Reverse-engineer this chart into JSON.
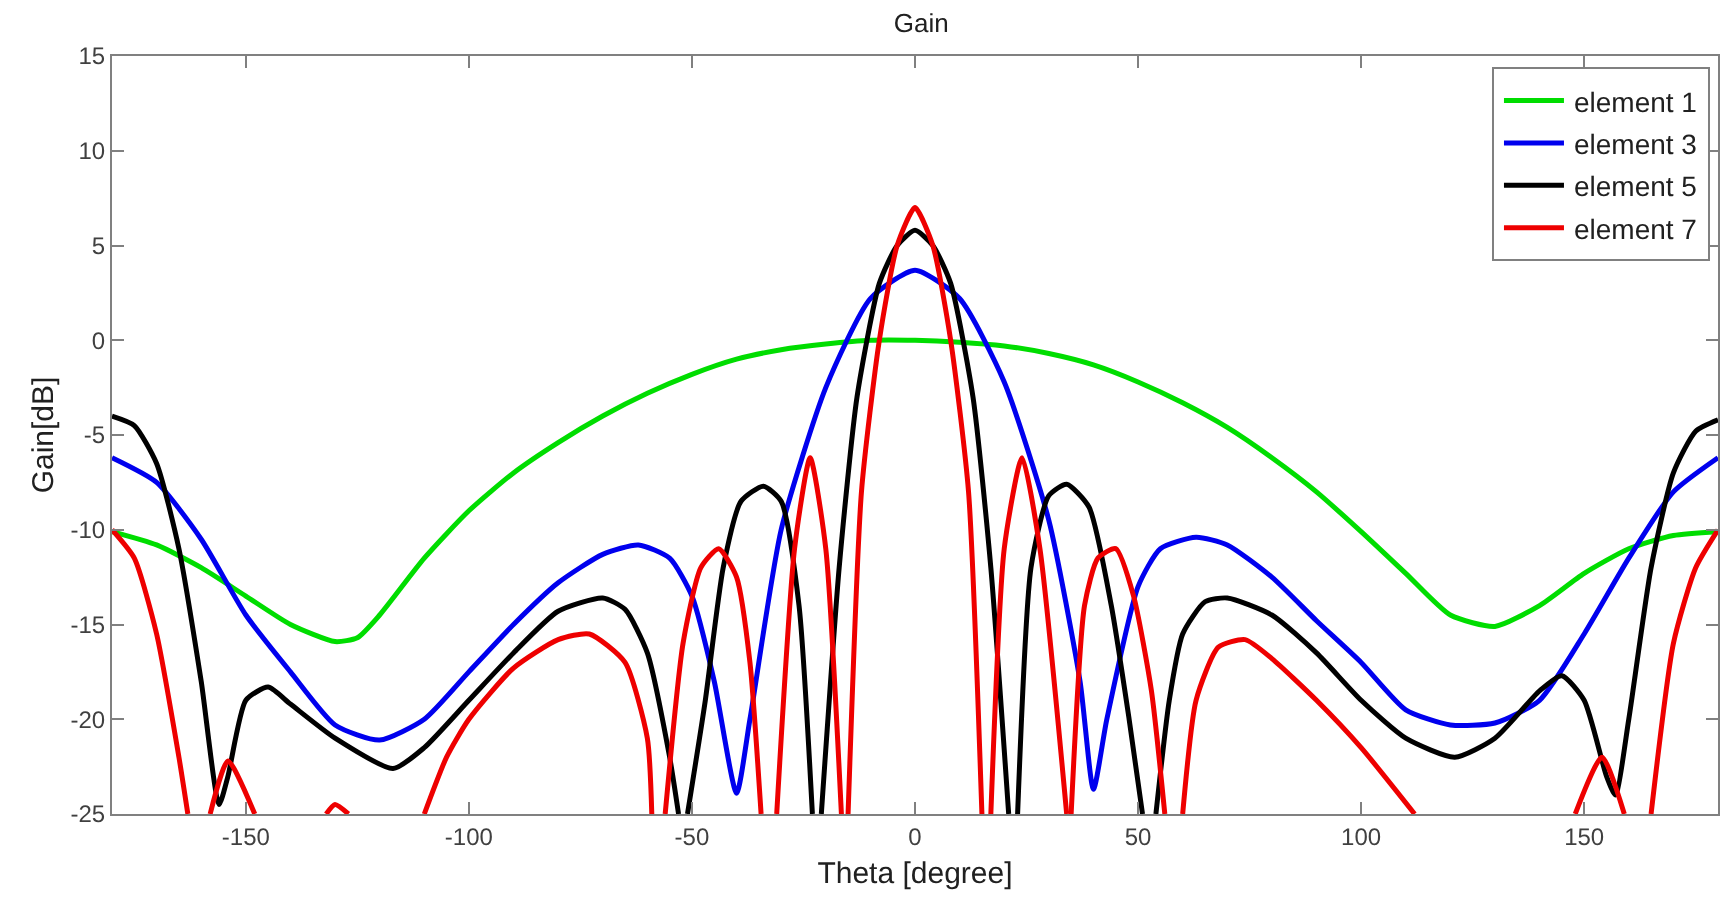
{
  "chart_data": {
    "type": "line",
    "title": "Gain",
    "xlabel": "Theta [degree]",
    "ylabel": "Gain[dB]",
    "xlim": [
      -180,
      180
    ],
    "ylim": [
      -25,
      15
    ],
    "xticks": [
      -150,
      -100,
      -50,
      0,
      50,
      100,
      150
    ],
    "yticks": [
      -25,
      -20,
      -15,
      -10,
      -5,
      0,
      5,
      10,
      15
    ],
    "grid": false,
    "legend": "top right",
    "marker": "none",
    "line_style": "solid",
    "series": [
      {
        "name": "element 1",
        "color": "#00dd00",
        "x": [
          -180,
          -170,
          -160,
          -150,
          -140,
          -130,
          -125,
          -120,
          -110,
          -100,
          -90,
          -80,
          -70,
          -60,
          -50,
          -40,
          -30,
          -20,
          -10,
          0,
          10,
          20,
          30,
          40,
          50,
          60,
          70,
          80,
          90,
          100,
          110,
          120,
          130,
          140,
          150,
          160,
          170,
          180
        ],
        "values": [
          -10.1,
          -10.8,
          -12.0,
          -13.5,
          -15.0,
          -15.9,
          -15.7,
          -14.5,
          -11.5,
          -9.0,
          -7.0,
          -5.4,
          -4.0,
          -2.8,
          -1.8,
          -1.0,
          -0.5,
          -0.2,
          0,
          0,
          -0.1,
          -0.3,
          -0.7,
          -1.3,
          -2.2,
          -3.3,
          -4.6,
          -6.2,
          -8.0,
          -10.1,
          -12.3,
          -14.5,
          -15.1,
          -14.0,
          -12.3,
          -11.0,
          -10.3,
          -10.1
        ]
      },
      {
        "name": "element 3",
        "color": "#0000ee",
        "x": [
          -180,
          -170,
          -160,
          -150,
          -140,
          -130,
          -120,
          -110,
          -100,
          -90,
          -80,
          -70,
          -62,
          -55,
          -50,
          -45,
          -40,
          -37,
          -30,
          -20,
          -10,
          0,
          10,
          20,
          30,
          37,
          40,
          43,
          50,
          55,
          63,
          70,
          80,
          90,
          100,
          110,
          120,
          130,
          140,
          150,
          160,
          170,
          180
        ],
        "values": [
          -6.2,
          -7.5,
          -10.5,
          -14.5,
          -17.5,
          -20.3,
          -21.1,
          -20.0,
          -17.5,
          -15.0,
          -12.8,
          -11.3,
          -10.8,
          -11.5,
          -13.5,
          -18.0,
          -23.9,
          -20.0,
          -10.0,
          -2.5,
          2.2,
          3.7,
          2.2,
          -2.2,
          -9.5,
          -18.0,
          -23.7,
          -20.0,
          -13.0,
          -11.0,
          -10.4,
          -10.8,
          -12.5,
          -14.8,
          -17.0,
          -19.5,
          -20.3,
          -20.2,
          -19.0,
          -15.5,
          -11.5,
          -8.0,
          -6.2
        ]
      },
      {
        "name": "element 5",
        "color": "#000000",
        "x": [
          -180,
          -175,
          -170,
          -165,
          -160,
          -156,
          -154,
          -150,
          -145,
          -140,
          -130,
          -117,
          -110,
          -100,
          -90,
          -80,
          -70,
          -65,
          -60,
          -55,
          -53,
          -52,
          -51,
          -47,
          -43,
          -39,
          -34,
          -30,
          -26,
          -23,
          -22,
          -21,
          -17,
          -13,
          -8,
          -4,
          0,
          4,
          8,
          13,
          17,
          21,
          22,
          23,
          26,
          30,
          34,
          39,
          44,
          48,
          51,
          52,
          54,
          57,
          60,
          65,
          70,
          80,
          90,
          100,
          110,
          121,
          130,
          140,
          145,
          150,
          155,
          157,
          160,
          165,
          170,
          175,
          180
        ],
        "values": [
          -4.0,
          -4.5,
          -6.5,
          -11.0,
          -18.0,
          -24.5,
          -23.0,
          -19.0,
          -18.3,
          -19.2,
          -21.0,
          -22.6,
          -21.5,
          -19.0,
          -16.5,
          -14.3,
          -13.6,
          -14.2,
          -16.5,
          -22.0,
          -25,
          null,
          -25,
          -19.0,
          -12.0,
          -8.5,
          -7.7,
          -8.5,
          -14.0,
          -25,
          null,
          -25,
          -12.0,
          -3.0,
          3.0,
          5.0,
          5.8,
          5.0,
          3.0,
          -3.0,
          -12.0,
          -25,
          null,
          -25,
          -12.0,
          -8.2,
          -7.6,
          -8.8,
          -14.0,
          -20.0,
          -25,
          null,
          -25,
          -19.0,
          -15.5,
          -13.8,
          -13.6,
          -14.5,
          -16.5,
          -19.0,
          -21.0,
          -22.0,
          -21.0,
          -18.5,
          -17.7,
          -19.0,
          -23.0,
          -24.0,
          -20.0,
          -12.0,
          -7.0,
          -4.8,
          -4.2
        ]
      },
      {
        "name": "element 7",
        "color": "#ee0000",
        "x": [
          -180,
          -175,
          -170,
          -165,
          -163,
          -162,
          -158,
          -154,
          -148,
          -147,
          -132,
          -130,
          -127,
          -126,
          -110,
          -105,
          -100,
          -90,
          -80,
          -73,
          -65,
          -60,
          -59,
          -58,
          -56,
          -52,
          -48,
          -44,
          -40,
          -37,
          -34.5,
          -34,
          -31,
          -27,
          -23.5,
          -20,
          -16.5,
          -16,
          -15,
          -12,
          -8,
          -4,
          0,
          4,
          8,
          12,
          15,
          15.5,
          17,
          20,
          24,
          28,
          34,
          34.5,
          35,
          38,
          41,
          45,
          49,
          53,
          56,
          57,
          60,
          63,
          68,
          74,
          80,
          90,
          100,
          112,
          113,
          148,
          154,
          159,
          160,
          165,
          170,
          175,
          180
        ],
        "values": [
          -10.0,
          -11.5,
          -15.5,
          -22.0,
          -25,
          null,
          -25,
          -22.2,
          -25,
          null,
          -25,
          -24.5,
          -25,
          null,
          -25,
          -22.0,
          -20.0,
          -17.3,
          -15.8,
          -15.5,
          -17.0,
          -21.0,
          -25,
          null,
          -25,
          -16.0,
          -12.0,
          -11.0,
          -12.5,
          -17.0,
          -25,
          null,
          -25,
          -11.0,
          -6.2,
          -11.0,
          -25,
          null,
          -25,
          -8.0,
          0,
          5.0,
          7.0,
          5.0,
          0,
          -8.0,
          -25,
          null,
          -25,
          -11.0,
          -6.2,
          -11.0,
          -25,
          null,
          -25,
          -14.0,
          -11.5,
          -11.0,
          -13.5,
          -18.5,
          -25,
          null,
          -25,
          -19.0,
          -16.2,
          -15.8,
          -16.8,
          -19.0,
          -21.5,
          -25,
          null,
          -25,
          -22.0,
          -25,
          null,
          -25,
          -16.0,
          -12.0,
          -10.0
        ]
      }
    ]
  }
}
